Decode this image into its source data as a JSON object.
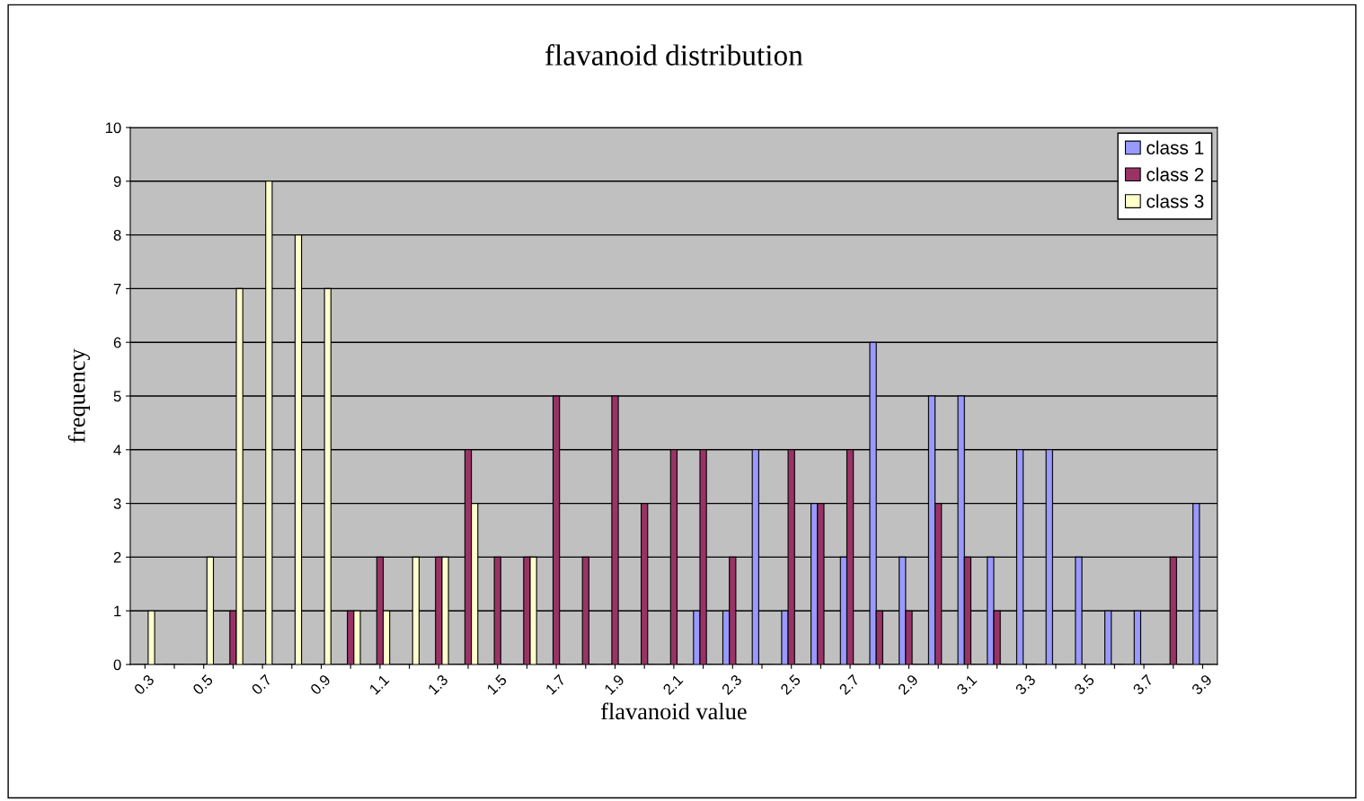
{
  "chart_data": {
    "type": "bar",
    "title": "flavanoid distribution",
    "xlabel": "flavanoid value",
    "ylabel": "frequency",
    "categories": [
      "0.3",
      null,
      "0.5",
      null,
      "0.7",
      null,
      "0.9",
      null,
      "1.1",
      null,
      "1.3",
      null,
      "1.5",
      null,
      "1.7",
      null,
      "1.9",
      null,
      "2.1",
      null,
      "2.3",
      null,
      "2.5",
      null,
      "2.7",
      null,
      "2.9",
      null,
      "3.1",
      null,
      "3.3",
      null,
      "3.5",
      null,
      "3.7",
      null,
      "3.9"
    ],
    "series": [
      {
        "name": "class 1",
        "color": "#9999ff",
        "values": [
          0,
          0,
          0,
          0,
          0,
          0,
          0,
          0,
          0,
          0,
          0,
          0,
          0,
          0,
          0,
          0,
          0,
          0,
          0,
          1,
          1,
          4,
          1,
          3,
          2,
          6,
          2,
          5,
          5,
          2,
          4,
          4,
          2,
          1,
          1,
          0,
          3
        ]
      },
      {
        "name": "class 2",
        "color": "#993366",
        "values": [
          0,
          0,
          0,
          1,
          0,
          0,
          0,
          1,
          2,
          0,
          2,
          4,
          2,
          2,
          5,
          2,
          5,
          3,
          4,
          4,
          2,
          0,
          4,
          3,
          4,
          1,
          1,
          3,
          2,
          1,
          0,
          0,
          0,
          0,
          0,
          2,
          0
        ]
      },
      {
        "name": "class 3",
        "color": "#ffffcc",
        "values": [
          1,
          0,
          2,
          7,
          9,
          8,
          7,
          1,
          1,
          2,
          2,
          3,
          0,
          2,
          0,
          0,
          0,
          0,
          0,
          0,
          0,
          0,
          0,
          0,
          0,
          0,
          0,
          0,
          0,
          0,
          0,
          0,
          0,
          0,
          0,
          0,
          0
        ]
      }
    ],
    "ylim": [
      0,
      10
    ],
    "yticks": [
      0,
      1,
      2,
      3,
      4,
      5,
      6,
      7,
      8,
      9,
      10
    ],
    "grid": "y",
    "legend": "top right"
  }
}
